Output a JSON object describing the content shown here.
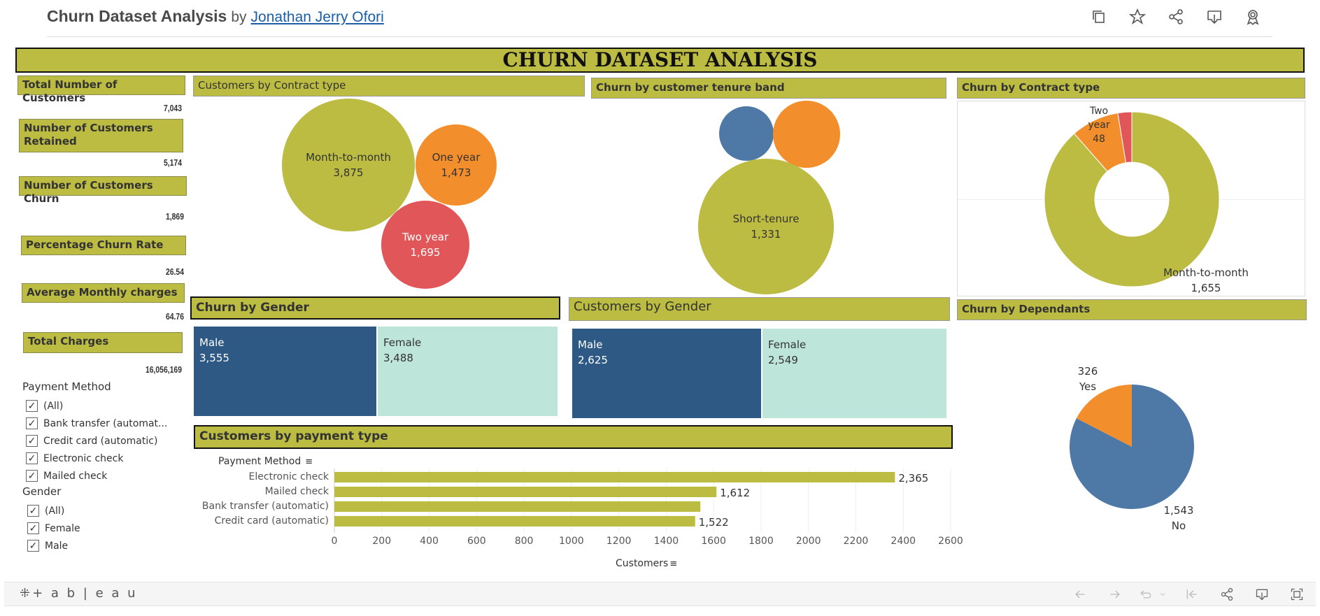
{
  "header": {
    "title": "Churn Dataset Analysis",
    "by": "by",
    "author": "Jonathan Jerry Ofori",
    "icons": [
      "duplicate-icon",
      "favorite-star-icon",
      "share-icon",
      "download-icon",
      "badge-icon"
    ]
  },
  "banner": "CHURN DATASET ANALYSIS",
  "kpis": [
    {
      "label": "Total Number of Customers",
      "value": "7,043"
    },
    {
      "label": "Number of Customers Retained",
      "value": "5,174"
    },
    {
      "label": "Number of Customers Churn",
      "value": "1,869"
    },
    {
      "label": "Percentage Churn Rate",
      "value": "26.54"
    },
    {
      "label": "Average Monthly charges",
      "value": "64.76"
    },
    {
      "label": "Total Charges",
      "value": "16,056,169"
    }
  ],
  "filters": {
    "payment": {
      "title": "Payment Method",
      "items": [
        "(All)",
        "Bank transfer (automat...",
        "Credit card (automatic)",
        "Electronic check",
        "Mailed check"
      ]
    },
    "gender": {
      "title": "Gender",
      "items": [
        "(All)",
        "Female",
        "Male"
      ]
    }
  },
  "panels": {
    "contract_bubbles": {
      "title": "Customers by Contract type",
      "items": [
        {
          "label": "Month-to-month",
          "value": "3,875",
          "color": "#bcbc43"
        },
        {
          "label": "One year",
          "value": "1,473",
          "color": "#f28e2b"
        },
        {
          "label": "Two year",
          "value": "1,695",
          "color": "#e15759"
        }
      ]
    },
    "tenure_bubbles": {
      "title": "Churn by customer tenure band",
      "items": [
        {
          "label": "",
          "value": "",
          "color": "#4e79a7"
        },
        {
          "label": "",
          "value": "",
          "color": "#f28e2b"
        },
        {
          "label": "Short-tenure",
          "value": "1,331",
          "color": "#bcbc43"
        }
      ]
    },
    "churn_contract_donut": {
      "title": "Churn by Contract type",
      "label_two_year": "Two year",
      "value_two_year": "48",
      "label_mtm": "Month-to-month",
      "value_mtm": "1,655"
    },
    "churn_gender": {
      "title": "Churn by Gender",
      "male_label": "Male",
      "male_value": "3,555",
      "female_label": "Female",
      "female_value": "3,488"
    },
    "customers_gender": {
      "title": "Customers by Gender",
      "male_label": "Male",
      "male_value": "2,625",
      "female_label": "Female",
      "female_value": "2,549"
    },
    "dependants": {
      "title": "Churn by Dependants",
      "yes_value": "326",
      "yes_label": "Yes",
      "no_value": "1,543",
      "no_label": "No"
    },
    "payment_bar": {
      "title": "Customers by payment type",
      "row_header": "Payment Method",
      "xlabel": "Customers"
    }
  },
  "chart_data": [
    {
      "type": "bar",
      "title": "Customers by payment type",
      "orientation": "horizontal",
      "categories": [
        "Electronic check",
        "Mailed check",
        "Bank transfer (automatic)",
        "Credit card (automatic)"
      ],
      "values": [
        2365,
        1612,
        1544,
        1522
      ],
      "value_labels": [
        "2,365",
        "1,612",
        "",
        "1,522"
      ],
      "xlabel": "Customers",
      "ylabel": "Payment Method",
      "xlim": [
        0,
        2600
      ],
      "ticks": [
        "0",
        "200",
        "400",
        "600",
        "800",
        "1000",
        "1200",
        "1400",
        "1600",
        "1800",
        "2000",
        "2200",
        "2400",
        "2600"
      ],
      "color": "#bcbc43"
    },
    {
      "type": "pie",
      "title": "Churn by Contract type",
      "donut": true,
      "labels": [
        "Month-to-month",
        "One year",
        "Two year"
      ],
      "values": [
        1655,
        166,
        48
      ],
      "colors": [
        "#bcbc43",
        "#f28e2b",
        "#e15759"
      ]
    },
    {
      "type": "pie",
      "title": "Churn by Dependants",
      "labels": [
        "No",
        "Yes"
      ],
      "values": [
        1543,
        326
      ],
      "colors": [
        "#4e79a7",
        "#f28e2b"
      ]
    }
  ],
  "footer": {
    "logo": "+ a b | e a u",
    "icons": [
      "undo-icon",
      "redo-icon",
      "revert-icon",
      "reset-icon",
      "share-icon",
      "download-icon",
      "fullscreen-icon"
    ]
  }
}
